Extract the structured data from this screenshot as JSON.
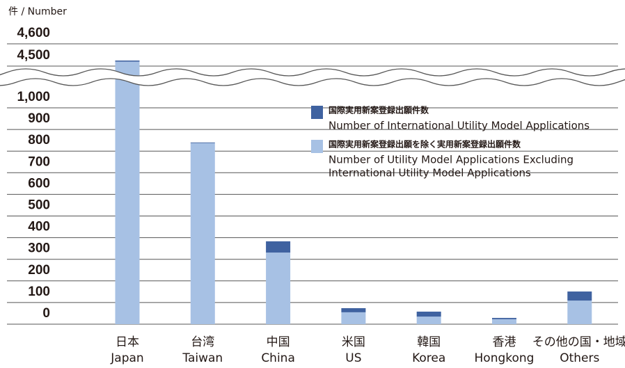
{
  "chart_data": {
    "type": "stacked_bar",
    "y_axis_label": "件 / Number",
    "categories_ja": [
      "日本",
      "台湾",
      "中国",
      "米国",
      "韓国",
      "香港",
      "その他の国・地域"
    ],
    "categories": [
      "Japan",
      "Taiwan",
      "China",
      "US",
      "Korea",
      "Hongkong",
      "Others"
    ],
    "series": [
      {
        "name": "国際実用新案登録出願を除く実用新案登録出願件数",
        "name_en": [
          "Number of Utility Model Applications Excluding",
          "International Utility Model Applications"
        ],
        "color": "#a7c1e4",
        "values": [
          4520,
          837,
          331,
          55,
          35,
          23,
          109
        ]
      },
      {
        "name": "国際実用新案登録出願件数",
        "name_en": [
          "Number of International Utility Model Applications"
        ],
        "color": "#3f62a0",
        "values": [
          5,
          3,
          52,
          19,
          23,
          6,
          42
        ]
      }
    ],
    "ylim": [
      0,
      4600
    ],
    "y_break": [
      1000,
      4500
    ],
    "yticks": [
      0,
      100,
      200,
      300,
      400,
      500,
      600,
      700,
      800,
      900,
      {
        "value": 1000,
        "label": "1,000"
      },
      {
        "value": 4500,
        "label": "4,500"
      },
      {
        "value": 4600,
        "label": "4,600"
      }
    ],
    "grid": true
  }
}
